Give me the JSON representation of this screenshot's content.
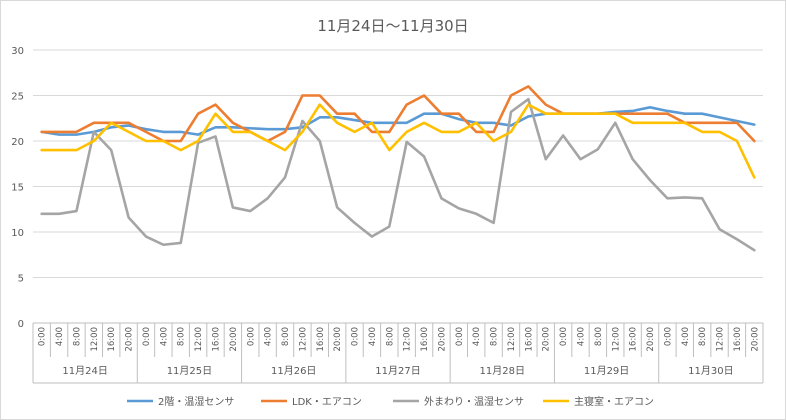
{
  "chart_data": {
    "type": "line",
    "title": "11月24日～11月30日",
    "ylim": [
      0,
      30
    ],
    "yticks": [
      0,
      5,
      10,
      15,
      20,
      25,
      30
    ],
    "grid": true,
    "legend_position": "bottom",
    "x_tick_labels": [
      "0:00",
      "4:00",
      "8:00",
      "12:00",
      "16:00",
      "20:00"
    ],
    "days": [
      "11月24日",
      "11月25日",
      "11月26日",
      "11月27日",
      "11月28日",
      "11月29日",
      "11月30日"
    ],
    "series": [
      {
        "name": "2階・温湿センサ",
        "color": "#5B9BD5",
        "values": [
          21,
          20.7,
          20.7,
          21,
          21.5,
          21.7,
          21.3,
          21,
          21,
          20.7,
          21.5,
          21.5,
          21.4,
          21.3,
          21.3,
          21.5,
          22.6,
          22.6,
          22.3,
          22,
          22,
          22,
          23,
          23,
          22.4,
          22,
          22,
          21.7,
          22.7,
          23,
          23,
          23,
          23,
          23.2,
          23.3,
          23.7,
          23.3,
          23,
          23,
          22.6,
          22.2,
          21.8
        ]
      },
      {
        "name": "LDK・エアコン",
        "color": "#ED7D31",
        "values": [
          21,
          21,
          21,
          22,
          22,
          22,
          21,
          20,
          20,
          23,
          24,
          22,
          21,
          20,
          21,
          25,
          25,
          23,
          23,
          21,
          21,
          24,
          25,
          23,
          23,
          21,
          21,
          25,
          26,
          24,
          23,
          23,
          23,
          23,
          23,
          23,
          23,
          22,
          22,
          22,
          22,
          20
        ]
      },
      {
        "name": "外まわり・温湿センサ",
        "color": "#A5A5A5",
        "values": [
          12,
          12,
          12.3,
          21,
          19,
          11.6,
          9.5,
          8.6,
          8.8,
          19.8,
          20.5,
          12.7,
          12.3,
          13.7,
          16,
          22.2,
          20,
          12.7,
          11,
          9.5,
          10.6,
          19.9,
          18.3,
          13.7,
          12.6,
          12,
          11,
          23.2,
          24.6,
          18,
          20.6,
          18,
          19.1,
          22,
          18,
          15.7,
          13.7,
          13.8,
          13.7,
          10.3,
          9.2,
          8
        ]
      },
      {
        "name": "主寝室・エアコン",
        "color": "#FFC000",
        "values": [
          19,
          19,
          19,
          20,
          22,
          21,
          20,
          20,
          19,
          20,
          23,
          21,
          21,
          20,
          19,
          21,
          24,
          22,
          21,
          22,
          19,
          21,
          22,
          21,
          21,
          22,
          20,
          21,
          24,
          23,
          23,
          23,
          23,
          23,
          22,
          22,
          22,
          22,
          21,
          21,
          20,
          16
        ]
      }
    ]
  }
}
